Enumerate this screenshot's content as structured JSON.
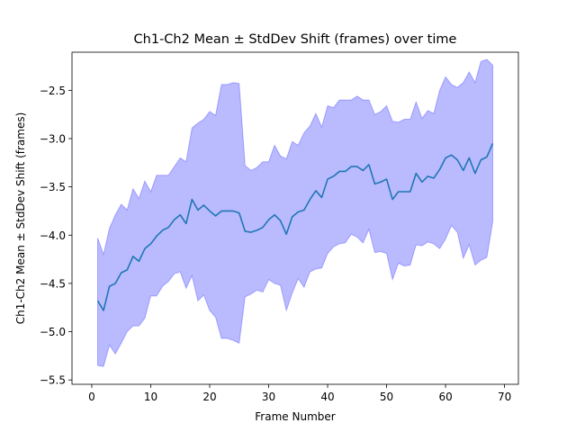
{
  "chart_data": {
    "type": "line",
    "title": "Ch1-Ch2 Mean ± StdDev Shift (frames) over time",
    "xlabel": "Frame Number",
    "ylabel": "Ch1-Ch2 Mean ± StdDev Shift (frames)",
    "xlim": [
      -3.35,
      72.35
    ],
    "ylim": [
      -5.545,
      -2.105
    ],
    "xticks": [
      0,
      10,
      20,
      30,
      40,
      50,
      60,
      70
    ],
    "yticks": [
      -5.5,
      -5.0,
      -4.5,
      -4.0,
      -3.5,
      -3.0,
      -2.5
    ],
    "xtick_labels": [
      "0",
      "10",
      "20",
      "30",
      "40",
      "50",
      "60",
      "70"
    ],
    "ytick_labels": [
      "−5.5",
      "−5.0",
      "−4.5",
      "−4.0",
      "−3.5",
      "−3.0",
      "−2.5"
    ],
    "grid": false,
    "series": [
      {
        "mean": [
          -4.68,
          -4.78,
          -4.53,
          -4.5,
          -4.39,
          -4.36,
          -4.22,
          -4.27,
          -4.14,
          -4.09,
          -4.01,
          -3.95,
          -3.92,
          -3.84,
          -3.79,
          -3.88,
          -3.63,
          -3.74,
          -3.69,
          -3.75,
          -3.8,
          -3.75,
          -3.75,
          -3.75,
          -3.77,
          -3.96,
          -3.97,
          -3.95,
          -3.92,
          -3.84,
          -3.79,
          -3.85,
          -3.99,
          -3.81,
          -3.76,
          -3.74,
          -3.63,
          -3.54,
          -3.61,
          -3.42,
          -3.39,
          -3.34,
          -3.34,
          -3.29,
          -3.29,
          -3.33,
          -3.27,
          -3.47,
          -3.45,
          -3.42,
          -3.63,
          -3.55,
          -3.55,
          -3.55,
          -3.36,
          -3.45,
          -3.39,
          -3.41,
          -3.32,
          -3.2,
          -3.17,
          -3.22,
          -3.33,
          -3.2,
          -3.36,
          -3.22,
          -3.19,
          -3.05
        ],
        "upper": [
          -4.03,
          -4.2,
          -3.93,
          -3.79,
          -3.68,
          -3.74,
          -3.52,
          -3.62,
          -3.44,
          -3.55,
          -3.38,
          -3.38,
          -3.38,
          -3.29,
          -3.2,
          -3.24,
          -2.89,
          -2.84,
          -2.8,
          -2.72,
          -2.76,
          -2.44,
          -2.44,
          -2.42,
          -2.43,
          -3.28,
          -3.33,
          -3.3,
          -3.24,
          -3.24,
          -3.07,
          -3.18,
          -3.21,
          -3.03,
          -3.07,
          -2.94,
          -2.87,
          -2.74,
          -2.88,
          -2.66,
          -2.68,
          -2.6,
          -2.6,
          -2.6,
          -2.56,
          -2.6,
          -2.6,
          -2.75,
          -2.72,
          -2.66,
          -2.82,
          -2.83,
          -2.8,
          -2.8,
          -2.62,
          -2.79,
          -2.71,
          -2.74,
          -2.5,
          -2.36,
          -2.44,
          -2.47,
          -2.42,
          -2.31,
          -2.42,
          -2.2,
          -2.18,
          -2.24
        ],
        "lower": [
          -5.35,
          -5.36,
          -5.14,
          -5.23,
          -5.12,
          -5.0,
          -4.94,
          -4.94,
          -4.86,
          -4.63,
          -4.63,
          -4.53,
          -4.48,
          -4.4,
          -4.38,
          -4.55,
          -4.42,
          -4.68,
          -4.62,
          -4.78,
          -4.85,
          -5.07,
          -5.07,
          -5.09,
          -5.12,
          -4.64,
          -4.61,
          -4.57,
          -4.59,
          -4.46,
          -4.5,
          -4.52,
          -4.78,
          -4.6,
          -4.45,
          -4.54,
          -4.38,
          -4.35,
          -4.34,
          -4.19,
          -4.12,
          -4.09,
          -4.08,
          -3.99,
          -4.02,
          -4.08,
          -3.94,
          -4.18,
          -4.17,
          -4.19,
          -4.46,
          -4.29,
          -4.32,
          -4.31,
          -4.1,
          -4.11,
          -4.07,
          -4.09,
          -4.14,
          -4.04,
          -3.9,
          -3.97,
          -4.24,
          -4.1,
          -4.31,
          -4.26,
          -4.23,
          -3.86
        ],
        "color": "#1f77b4",
        "band_color": "#0000ff",
        "band_alpha": 0.27
      }
    ]
  }
}
